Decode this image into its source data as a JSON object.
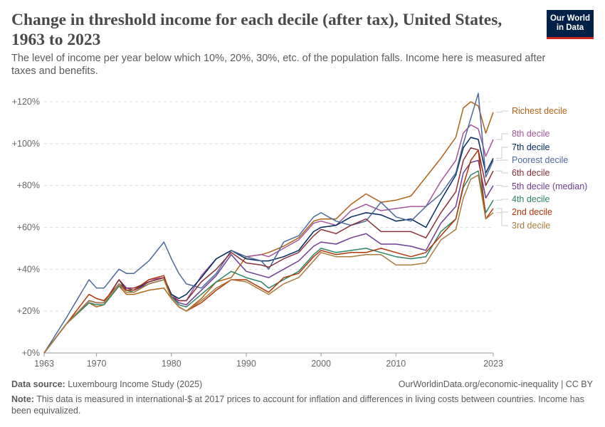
{
  "header": {
    "title": "Change in threshold income for each decile (after tax), United States, 1963 to 2023",
    "subtitle": "The level of income per year below which 10%, 20%, 30%, etc. of the population falls. Income here is measured after taxes and benefits.",
    "logo_line1": "Our World",
    "logo_line2": "in Data"
  },
  "footer": {
    "source_label": "Data source:",
    "source": "Luxembourg Income Study (2025)",
    "url": "OurWorldinData.org/economic-inequality | CC BY",
    "note_label": "Note:",
    "note": "This data is measured in international-$ at 2017 prices to account for inflation and differences in living costs between countries. Income has been equivalized."
  },
  "chart_data": {
    "type": "line",
    "title": "Change in threshold income for each decile (after tax), United States, 1963 to 2023",
    "xlim": [
      1963,
      2023
    ],
    "ylim": [
      0,
      120
    ],
    "x_ticks": [
      "1963",
      "1970",
      "1980",
      "1990",
      "2000",
      "2010",
      "2023"
    ],
    "y_ticks": [
      "+0%",
      "+20%",
      "+40%",
      "+60%",
      "+80%",
      "+100%",
      "+120%"
    ],
    "grid": "horizontal dashed",
    "legend": "right (line-end labels)",
    "x": [
      1963,
      1966,
      1969,
      1970,
      1971,
      1973,
      1974,
      1975,
      1977,
      1979,
      1980,
      1981,
      1982,
      1984,
      1986,
      1988,
      1990,
      1992,
      1993,
      1995,
      1997,
      1999,
      2000,
      2002,
      2004,
      2006,
      2008,
      2010,
      2012,
      2014,
      2016,
      2018,
      2019,
      2020,
      2021,
      2022,
      2023
    ],
    "series": [
      {
        "name": "Richest decile",
        "color": "#B16214",
        "values": [
          0,
          14,
          24,
          22,
          23,
          32,
          28,
          28,
          30,
          31,
          26,
          22,
          20,
          26,
          34,
          36,
          46,
          47,
          48,
          51,
          55,
          63,
          64,
          64,
          71,
          76,
          72,
          73,
          75,
          84,
          93,
          103,
          117,
          120,
          118,
          105,
          115
        ]
      },
      {
        "name": "8th decile",
        "color": "#A2559C",
        "values": [
          0,
          14,
          25,
          24,
          24,
          35,
          30,
          30,
          35,
          36,
          28,
          25,
          25,
          37,
          45,
          49,
          46,
          47,
          46,
          50,
          54,
          62,
          63,
          61,
          68,
          71,
          68,
          69,
          70,
          70,
          82,
          92,
          105,
          109,
          107,
          94,
          102
        ]
      },
      {
        "name": "7th decile",
        "color": "#00295B",
        "values": [
          0,
          14,
          25,
          24,
          24,
          35,
          30,
          30,
          34,
          36,
          28,
          26,
          28,
          36,
          45,
          49,
          45,
          44,
          44,
          46,
          49,
          58,
          60,
          61,
          65,
          67,
          66,
          63,
          64,
          60,
          73,
          85,
          98,
          103,
          102,
          86,
          93
        ]
      },
      {
        "name": "Poorest decile",
        "color": "#4C6A9C",
        "values": [
          0,
          17,
          35,
          31,
          31,
          40,
          38,
          38,
          44,
          53,
          45,
          38,
          33,
          31,
          38,
          49,
          46,
          44,
          40,
          53,
          56,
          65,
          67,
          63,
          61,
          63,
          72,
          65,
          63,
          70,
          76,
          86,
          100,
          112,
          124,
          84,
          92
        ]
      },
      {
        "name": "6th decile",
        "color": "#883039",
        "values": [
          0,
          14,
          25,
          24,
          24,
          35,
          31,
          31,
          34,
          36,
          27,
          25,
          25,
          34,
          40,
          48,
          43,
          42,
          41,
          45,
          48,
          56,
          59,
          57,
          61,
          64,
          58,
          58,
          58,
          55,
          67,
          77,
          92,
          98,
          97,
          80,
          87
        ]
      },
      {
        "name": "5th decile (median)",
        "color": "#6D3E91",
        "values": [
          0,
          14,
          25,
          24,
          24,
          33,
          31,
          30,
          33,
          35,
          27,
          24,
          23,
          30,
          37,
          47,
          39,
          37,
          36,
          40,
          44,
          51,
          53,
          52,
          55,
          57,
          52,
          52,
          51,
          49,
          62,
          70,
          86,
          91,
          92,
          74,
          80
        ]
      },
      {
        "name": "4th decile",
        "color": "#2C8465",
        "values": [
          0,
          14,
          24,
          23,
          23,
          32,
          30,
          29,
          33,
          35,
          27,
          23,
          22,
          28,
          34,
          39,
          36,
          34,
          31,
          35,
          39,
          47,
          50,
          48,
          49,
          50,
          48,
          46,
          45,
          46,
          58,
          64,
          79,
          85,
          87,
          67,
          73
        ]
      },
      {
        "name": "2nd decile",
        "color": "#B13507",
        "values": [
          0,
          14,
          28,
          26,
          25,
          33,
          30,
          30,
          35,
          37,
          26,
          22,
          20,
          24,
          30,
          35,
          35,
          31,
          29,
          36,
          38,
          46,
          49,
          47,
          48,
          48,
          50,
          48,
          46,
          48,
          56,
          64,
          80,
          92,
          97,
          64,
          69
        ]
      },
      {
        "name": "3rd decile",
        "color": "#A87B3F",
        "values": [
          0,
          14,
          25,
          24,
          24,
          33,
          29,
          29,
          33,
          35,
          26,
          22,
          20,
          25,
          31,
          35,
          34,
          30,
          28,
          33,
          36,
          44,
          48,
          46,
          46,
          47,
          47,
          42,
          42,
          43,
          54,
          59,
          74,
          83,
          85,
          64,
          67
        ]
      }
    ]
  }
}
